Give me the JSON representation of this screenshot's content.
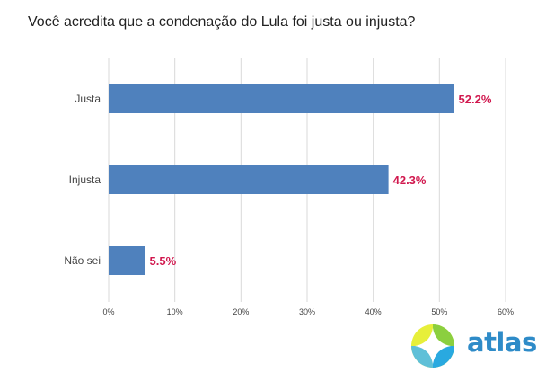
{
  "chart_data": {
    "type": "bar",
    "orientation": "horizontal",
    "title": "Você acredita que a condenação do Lula foi justa ou injusta?",
    "categories": [
      "Justa",
      "Injusta",
      "Não sei"
    ],
    "values": [
      52.2,
      42.3,
      5.5
    ],
    "value_labels": [
      "52.2%",
      "42.3%",
      "5.5%"
    ],
    "xlim": [
      0,
      60
    ],
    "x_ticks": [
      0,
      10,
      20,
      30,
      40,
      50,
      60
    ],
    "x_tick_labels": [
      "0%",
      "10%",
      "20%",
      "30%",
      "40%",
      "50%",
      "60%"
    ],
    "grid": true,
    "xlabel": "",
    "ylabel": ""
  },
  "colors": {
    "bar": "#4f81bd",
    "value_label": "#d1184e",
    "grid": "#d9d9d9",
    "axis_text": "#444444",
    "logo_text": "#2e8bc8"
  },
  "brand": {
    "logo_text": "atlas",
    "logo_icon": "atlas-logo-icon"
  }
}
